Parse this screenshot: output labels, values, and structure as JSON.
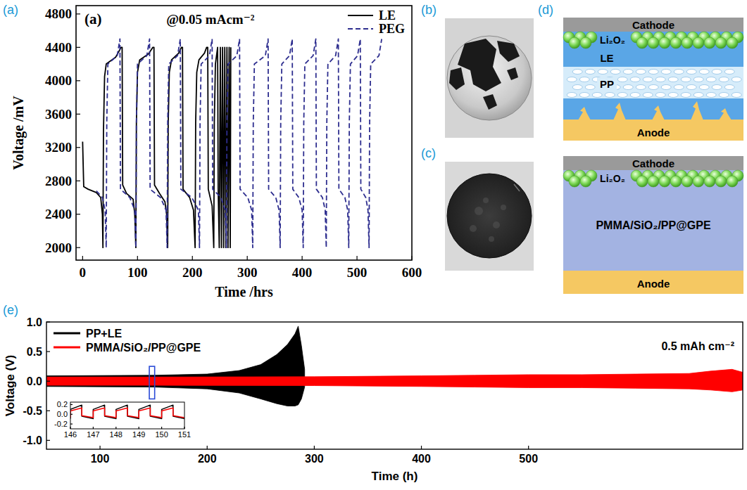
{
  "panel_labels": [
    "(a)",
    "(b)",
    "(c)",
    "(d)",
    "(e)"
  ],
  "chart_data": [
    {
      "type": "line",
      "title": "(a)",
      "subtitle": "@0.05 mAcm⁻²",
      "x_label": "Time /hrs",
      "y_label": "Voltage /mV",
      "xlim": [
        -12,
        600
      ],
      "ylim": [
        1850,
        4900
      ],
      "xticks": [
        0,
        100,
        200,
        300,
        400,
        500,
        600
      ],
      "yticks": [
        2000,
        2400,
        2800,
        3200,
        3600,
        4000,
        4400,
        4800
      ],
      "grid": false,
      "legend": "upper right",
      "series": [
        {
          "name": "LE",
          "color": "#000000",
          "line_style": "solid",
          "x": [
            0,
            2,
            10,
            25,
            33,
            36,
            37,
            38,
            40,
            43,
            60,
            66,
            70,
            72,
            73,
            80,
            92,
            95,
            97,
            98,
            100,
            104,
            120,
            128,
            130,
            131,
            140,
            150,
            153,
            155,
            156,
            158,
            162,
            175,
            180,
            182,
            183,
            195,
            202,
            205,
            206,
            208,
            212,
            222,
            226,
            228,
            229,
            236,
            239,
            240,
            242,
            246,
            247,
            249,
            251,
            253,
            255,
            257,
            259,
            261,
            263,
            265,
            267,
            269,
            270
          ],
          "values": [
            3270,
            2730,
            2700,
            2660,
            2600,
            2400,
            2000,
            3400,
            4050,
            4200,
            4280,
            4350,
            4400,
            4400,
            2750,
            2650,
            2580,
            2400,
            2000,
            3500,
            4100,
            4250,
            4320,
            4400,
            4400,
            2750,
            2650,
            2550,
            2400,
            2000,
            3500,
            4100,
            4250,
            4330,
            4400,
            4400,
            2700,
            2600,
            2450,
            2000,
            3500,
            4100,
            4250,
            4330,
            4400,
            4400,
            2700,
            2500,
            2000,
            3500,
            4200,
            4400,
            2700,
            2000,
            4400,
            2000,
            4400,
            2000,
            4400,
            2000,
            4400,
            2000,
            4400,
            2000,
            4400
          ]
        },
        {
          "name": "PEG",
          "color": "#2e2e8f",
          "line_style": "dashed",
          "x": [
            25,
            36,
            41,
            43,
            44,
            46,
            63,
            68,
            69,
            86,
            95,
            97,
            98,
            100,
            117,
            122,
            123,
            142,
            152,
            154,
            155,
            157,
            173,
            178,
            179,
            199,
            211,
            213,
            214,
            216,
            231,
            236,
            237,
            252,
            260,
            262,
            263,
            265,
            281,
            286,
            287,
            301,
            308,
            310,
            311,
            313,
            333,
            338,
            339,
            352,
            358,
            360,
            361,
            363,
            377,
            382,
            383,
            394,
            400,
            402,
            403,
            405,
            420,
            425,
            426,
            437,
            442,
            444,
            445,
            447,
            461,
            466,
            467,
            478,
            483,
            485,
            486,
            488,
            501,
            506,
            507,
            516,
            520,
            522,
            523,
            525,
            540,
            545
          ],
          "values": [
            2680,
            2600,
            2450,
            2000,
            3500,
            4200,
            4300,
            4500,
            2700,
            2600,
            2450,
            2000,
            3500,
            4200,
            4300,
            4500,
            2700,
            2600,
            2450,
            2000,
            3500,
            4200,
            4300,
            4500,
            2700,
            2600,
            2450,
            2000,
            3500,
            4200,
            4300,
            4500,
            2700,
            2600,
            2450,
            2000,
            3500,
            4200,
            4300,
            4500,
            2700,
            2600,
            2450,
            2000,
            3500,
            4200,
            4300,
            4500,
            2700,
            2600,
            2450,
            2000,
            3500,
            4200,
            4300,
            4500,
            2700,
            2600,
            2450,
            2000,
            3500,
            4200,
            4300,
            4500,
            2700,
            2600,
            2450,
            2000,
            3500,
            4200,
            4300,
            4500,
            2700,
            2600,
            2450,
            2000,
            3500,
            4200,
            4300,
            4500,
            2700,
            2600,
            2450,
            2000,
            3500,
            4200,
            4300,
            4500
          ]
        }
      ]
    },
    {
      "type": "area",
      "annotation": "0.5 mAh cm⁻²",
      "x_label": "Time (h)",
      "y_label": "Voltage (V)",
      "xlim": [
        50,
        700
      ],
      "ylim": [
        -1.15,
        1.0
      ],
      "xticks": [
        100,
        200,
        300,
        400,
        500
      ],
      "yticks": [
        {
          "value": -1.0,
          "label": "-1.0"
        },
        {
          "value": -0.5,
          "label": "-0.5"
        },
        {
          "value": 0,
          "label": "0.0"
        },
        {
          "value": 0.5,
          "label": "0.5"
        },
        {
          "value": 1.0,
          "label": "1.0"
        }
      ],
      "grid": false,
      "legend": "upper left",
      "series": [
        {
          "name": "PP+LE",
          "color": "#000000",
          "x": [
            50,
            150,
            200,
            230,
            250,
            265,
            275,
            282,
            285,
            288,
            291
          ],
          "values": [
            0.09,
            0.1,
            0.12,
            0.18,
            0.28,
            0.45,
            0.62,
            0.8,
            0.93,
            0.6,
            0.2
          ],
          "lower": [
            -0.09,
            -0.1,
            -0.13,
            -0.2,
            -0.3,
            -0.38,
            -0.42,
            -0.42,
            -0.4,
            -0.3,
            -0.1
          ]
        },
        {
          "name": "PMMA/SiO₂/PP@GPE",
          "color": "#ff0000",
          "x": [
            50,
            150,
            300,
            400,
            450,
            500,
            550,
            600,
            650,
            670,
            690,
            700
          ],
          "values": [
            0.07,
            0.07,
            0.075,
            0.09,
            0.1,
            0.11,
            0.11,
            0.12,
            0.13,
            0.17,
            0.2,
            0.15
          ],
          "lower": [
            -0.07,
            -0.07,
            -0.075,
            -0.09,
            -0.1,
            -0.11,
            -0.11,
            -0.12,
            -0.13,
            -0.15,
            -0.18,
            -0.15
          ]
        }
      ]
    },
    {
      "type": "line",
      "xlim": [
        146,
        151
      ],
      "ylim": [
        -0.3,
        0.25
      ],
      "xticks": [
        146,
        147,
        148,
        149,
        150,
        151
      ],
      "yticks": [
        {
          "value": -0.2,
          "label": "-0.2"
        },
        {
          "value": 0,
          "label": "0.0"
        },
        {
          "value": 0.2,
          "label": "0.2"
        }
      ],
      "grid": false,
      "x": [
        146,
        146,
        146.5,
        146.5,
        147,
        147,
        147.5,
        147.5,
        148,
        148,
        148.5,
        148.5,
        149,
        149,
        149.5,
        149.5,
        150,
        150,
        150.5,
        150.5,
        151
      ],
      "series": [
        {
          "color": "#000000",
          "line_style": "solid",
          "values": [
            -0.09,
            0.1,
            0.19,
            -0.04,
            -0.09,
            0.1,
            0.19,
            -0.04,
            -0.09,
            0.1,
            0.19,
            -0.04,
            -0.09,
            0.1,
            0.19,
            -0.04,
            -0.09,
            0.1,
            0.19,
            -0.04,
            -0.09
          ]
        },
        {
          "color": "#ff0000",
          "line_style": "solid",
          "values": [
            -0.07,
            0.07,
            0.13,
            -0.03,
            -0.07,
            0.07,
            0.13,
            -0.03,
            -0.07,
            0.07,
            0.13,
            -0.03,
            -0.07,
            0.07,
            0.13,
            -0.03,
            -0.07,
            0.07,
            0.13,
            -0.03,
            -0.07
          ]
        }
      ]
    }
  ],
  "diagram": {
    "top": [
      "Cathode",
      "Li₂O₂",
      "LE",
      "PP",
      "Anode"
    ],
    "bottom": [
      "Cathode",
      "Li₂O₂",
      "PMMA/SiO₂/PP@GPE",
      "Anode"
    ]
  }
}
